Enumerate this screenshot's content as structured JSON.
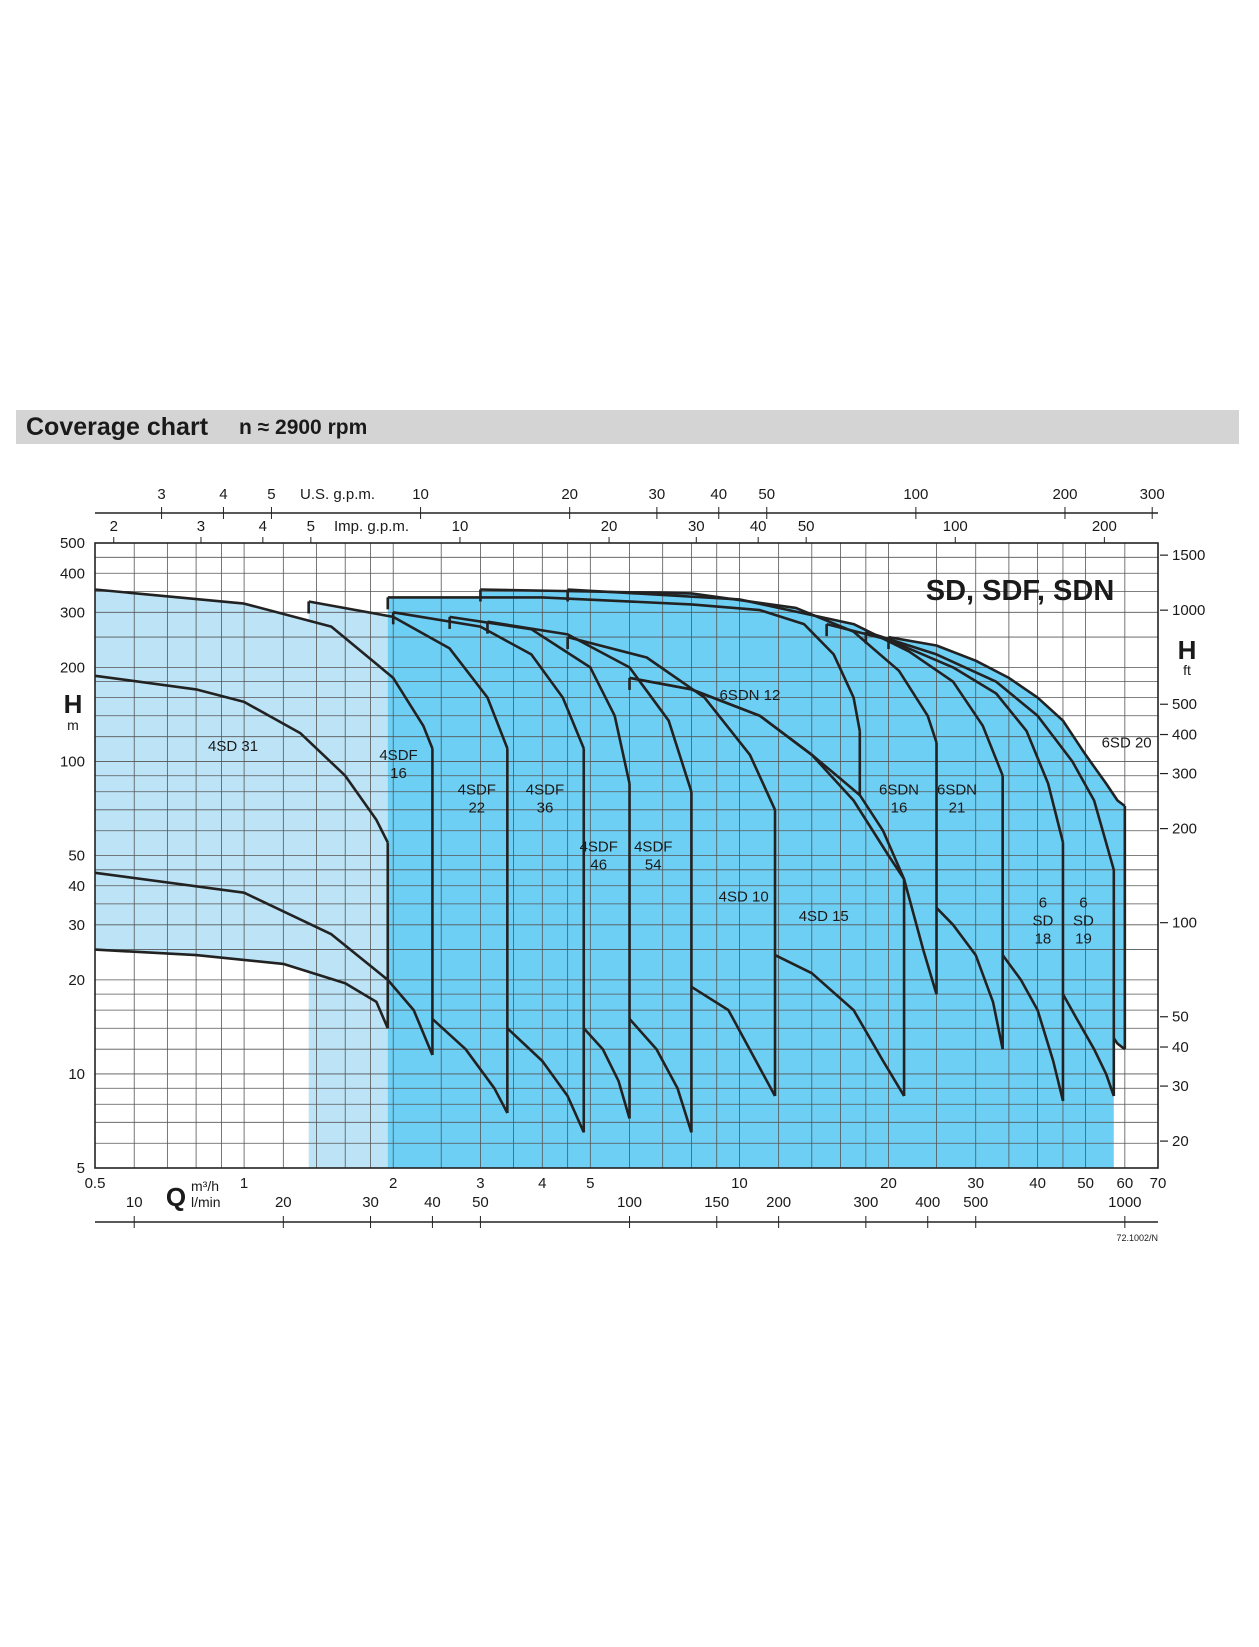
{
  "header": {
    "title": "Coverage chart",
    "subtitle": "n ≈ 2900 rpm"
  },
  "chart_data": {
    "type": "area",
    "title": "SD, SDF, SDN",
    "doc_code": "72.1002/N",
    "x_scale": "log",
    "y_scale": "log",
    "xlim": [
      0.5,
      70
    ],
    "ylim": [
      5,
      500
    ],
    "axes": {
      "bottom": {
        "symbol": "Q",
        "unit": "m³/h",
        "ticks": [
          0.5,
          1,
          2,
          3,
          4,
          5,
          10,
          20,
          30,
          40,
          50,
          60,
          70
        ],
        "labels": [
          "0.5",
          "1",
          "2",
          "3",
          "4",
          "5",
          "10",
          "20",
          "30",
          "40",
          "50",
          "60",
          "70"
        ]
      },
      "bottom_lmin": {
        "unit": "l/min",
        "ticks": [
          10,
          20,
          30,
          40,
          50,
          100,
          150,
          200,
          300,
          400,
          500,
          1000
        ],
        "labels": [
          "10",
          "20",
          "30",
          "40",
          "50",
          "100",
          "150",
          "200",
          "300",
          "400",
          "500",
          "1000"
        ]
      },
      "top_usgpm": {
        "unit": "U.S. g.p.m.",
        "ticks": [
          3,
          4,
          5,
          10,
          20,
          30,
          40,
          50,
          100,
          200,
          300
        ],
        "labels": [
          "3",
          "4",
          "5",
          "10",
          "20",
          "30",
          "40",
          "50",
          "100",
          "200",
          "300"
        ]
      },
      "top_impgpm": {
        "unit": "Imp. g.p.m.",
        "ticks": [
          2,
          3,
          4,
          5,
          10,
          20,
          30,
          40,
          50,
          100,
          200
        ],
        "labels": [
          "2",
          "3",
          "4",
          "5",
          "10",
          "20",
          "30",
          "40",
          "50",
          "100",
          "200"
        ]
      },
      "left": {
        "symbol": "H",
        "unit": "m",
        "ticks": [
          5,
          10,
          20,
          30,
          40,
          50,
          100,
          200,
          300,
          400,
          500
        ],
        "labels": [
          "5",
          "10",
          "20",
          "30",
          "40",
          "50",
          "100",
          "200",
          "300",
          "400",
          "500"
        ]
      },
      "right": {
        "symbol": "H",
        "unit": "ft",
        "ticks": [
          20,
          30,
          40,
          50,
          100,
          200,
          300,
          400,
          500,
          1000,
          1500
        ],
        "labels": [
          "20",
          "30",
          "40",
          "50",
          "100",
          "200",
          "300",
          "400",
          "500",
          "1000",
          "1500"
        ]
      }
    },
    "grid": true,
    "regions": [
      {
        "name": "4SD 31",
        "label": [
          "4SD 31"
        ],
        "color": "#bde4f6",
        "qmin": 0.5,
        "qmax": 1.95,
        "top": [
          [
            0.5,
            188
          ],
          [
            0.8,
            170
          ],
          [
            1.0,
            155
          ],
          [
            1.3,
            123
          ],
          [
            1.6,
            90
          ],
          [
            1.85,
            65
          ],
          [
            1.95,
            55
          ]
        ],
        "bottom": [
          [
            0.5,
            25
          ],
          [
            0.8,
            24
          ],
          [
            1.2,
            22.5
          ],
          [
            1.6,
            19.5
          ],
          [
            1.85,
            17
          ],
          [
            1.95,
            14
          ]
        ]
      },
      {
        "name": "4SDF 16",
        "label": [
          "4SDF",
          "16"
        ],
        "color": "#bde4f6",
        "qmin": 0.5,
        "qmax": 2.4,
        "top": [
          [
            0.5,
            355
          ],
          [
            1.0,
            320
          ],
          [
            1.5,
            270
          ],
          [
            2.0,
            185
          ],
          [
            2.3,
            130
          ],
          [
            2.4,
            110
          ]
        ],
        "bottom": [
          [
            0.5,
            44
          ],
          [
            1.0,
            38
          ],
          [
            1.5,
            28
          ],
          [
            1.95,
            20
          ],
          [
            2.2,
            16
          ],
          [
            2.4,
            11.5
          ]
        ]
      },
      {
        "name": "4SDF 22",
        "label": [
          "4SDF",
          "22"
        ],
        "color": "#bde4f6",
        "qmin": 1.35,
        "qmax": 3.4,
        "top": [
          [
            1.35,
            325
          ],
          [
            2.0,
            290
          ],
          [
            2.6,
            230
          ],
          [
            3.1,
            160
          ],
          [
            3.4,
            110
          ]
        ],
        "bottom": [
          [
            2.4,
            15
          ],
          [
            2.8,
            12
          ],
          [
            3.2,
            9
          ],
          [
            3.4,
            7.5
          ]
        ]
      },
      {
        "name": "4SDF 36",
        "label": [
          "4SDF",
          "36"
        ],
        "color": "#bde4f6",
        "qmin": 2.0,
        "qmax": 4.85,
        "top": [
          [
            2.0,
            300
          ],
          [
            3.0,
            270
          ],
          [
            3.8,
            220
          ],
          [
            4.4,
            160
          ],
          [
            4.85,
            110
          ]
        ],
        "bottom": [
          [
            3.4,
            14
          ],
          [
            4.0,
            11
          ],
          [
            4.5,
            8.5
          ],
          [
            4.85,
            6.5
          ]
        ]
      },
      {
        "name": "4SDF 46",
        "label": [
          "4SDF",
          "46"
        ],
        "color": "#bde4f6",
        "qmin": 2.6,
        "qmax": 6.0,
        "top": [
          [
            2.6,
            290
          ],
          [
            3.8,
            265
          ],
          [
            5.0,
            200
          ],
          [
            5.6,
            140
          ],
          [
            6.0,
            85
          ]
        ],
        "bottom": [
          [
            4.85,
            14
          ],
          [
            5.3,
            12
          ],
          [
            5.7,
            9.5
          ],
          [
            6.0,
            7.2
          ]
        ]
      },
      {
        "name": "4SDF 54",
        "label": [
          "4SDF",
          "54"
        ],
        "color": "#bde4f6",
        "qmin": 3.1,
        "qmax": 8.0,
        "top": [
          [
            3.1,
            280
          ],
          [
            4.5,
            255
          ],
          [
            6.0,
            200
          ],
          [
            7.2,
            135
          ],
          [
            8.0,
            80
          ]
        ],
        "bottom": [
          [
            6.0,
            15
          ],
          [
            6.8,
            12
          ],
          [
            7.5,
            9
          ],
          [
            8.0,
            6.5
          ]
        ]
      },
      {
        "name": "4SD 10",
        "label": [
          "4SD 10"
        ],
        "color": "#bde4f6",
        "qmin": 4.5,
        "qmax": 11.8,
        "top": [
          [
            4.5,
            250
          ],
          [
            6.5,
            215
          ],
          [
            8.5,
            160
          ],
          [
            10.5,
            105
          ],
          [
            11.8,
            70
          ]
        ],
        "bottom": [
          [
            8.0,
            19
          ],
          [
            9.5,
            16
          ],
          [
            10.8,
            11
          ],
          [
            11.8,
            8.5
          ]
        ]
      },
      {
        "name": "4SD 15",
        "label": [
          "4SD 15"
        ],
        "color": "#bde4f6",
        "qmin": 6.0,
        "qmax": 21.5,
        "top": [
          [
            6.0,
            185
          ],
          [
            8.0,
            170
          ],
          [
            11.0,
            140
          ],
          [
            14.0,
            105
          ],
          [
            17.0,
            75
          ],
          [
            20.0,
            50
          ],
          [
            21.5,
            42
          ]
        ],
        "bottom": [
          [
            11.8,
            24
          ],
          [
            14.0,
            21
          ],
          [
            17.0,
            16
          ],
          [
            19.5,
            11
          ],
          [
            21.5,
            8.5
          ]
        ]
      },
      {
        "name": "6SDN 12",
        "label": [
          "6SDN 12"
        ],
        "color": "#6ecff5",
        "qmin": 1.95,
        "qmax": 17.5,
        "top": [
          [
            1.95,
            335
          ],
          [
            4.0,
            335
          ],
          [
            8.0,
            318
          ],
          [
            11.0,
            305
          ],
          [
            13.5,
            275
          ],
          [
            15.5,
            220
          ],
          [
            17.0,
            160
          ],
          [
            17.5,
            125
          ]
        ],
        "bottom": [
          [
            6.0,
            185
          ],
          [
            8.0,
            170
          ],
          [
            11.0,
            140
          ],
          [
            14.0,
            105
          ],
          [
            16.0,
            88
          ],
          [
            17.5,
            78
          ]
        ]
      },
      {
        "name": "6SDN 16",
        "label": [
          "6SDN",
          "16"
        ],
        "color": "#6ecff5",
        "qmin": 3.0,
        "qmax": 25.0,
        "top": [
          [
            3.0,
            355
          ],
          [
            8.0,
            345
          ],
          [
            13.0,
            310
          ],
          [
            17.0,
            260
          ],
          [
            21.0,
            195
          ],
          [
            24.0,
            140
          ],
          [
            25.0,
            115
          ]
        ],
        "bottom": [
          [
            17.5,
            78
          ],
          [
            19.5,
            60
          ],
          [
            21.5,
            42
          ],
          [
            23.5,
            25
          ],
          [
            25.0,
            18
          ]
        ]
      },
      {
        "name": "6SDN 21",
        "label": [
          "6SDN",
          "21"
        ],
        "color": "#6ecff5",
        "qmin": 4.5,
        "qmax": 34.0,
        "top": [
          [
            4.5,
            355
          ],
          [
            10.0,
            330
          ],
          [
            17.0,
            275
          ],
          [
            22.0,
            225
          ],
          [
            27.0,
            180
          ],
          [
            31.0,
            130
          ],
          [
            34.0,
            90
          ]
        ],
        "bottom": [
          [
            25.0,
            34
          ],
          [
            27.0,
            30
          ],
          [
            30.0,
            24
          ],
          [
            32.5,
            17
          ],
          [
            34.0,
            12
          ]
        ]
      },
      {
        "name": "6 SD 18",
        "label": [
          "6",
          "SD",
          "18"
        ],
        "color": "#6ecff5",
        "qmin": 15.0,
        "qmax": 45.0,
        "top": [
          [
            15.0,
            275
          ],
          [
            20.0,
            245
          ],
          [
            27.0,
            200
          ],
          [
            33.0,
            165
          ],
          [
            38.0,
            125
          ],
          [
            42.0,
            85
          ],
          [
            45.0,
            55
          ]
        ],
        "bottom": [
          [
            34.0,
            24
          ],
          [
            37.0,
            20
          ],
          [
            40.0,
            16
          ],
          [
            43.0,
            11
          ],
          [
            45.0,
            8.2
          ]
        ]
      },
      {
        "name": "6 SD 19",
        "label": [
          "6",
          "SD",
          "19"
        ],
        "color": "#6ecff5",
        "qmin": 18.0,
        "qmax": 57.0,
        "top": [
          [
            18.0,
            260
          ],
          [
            25.0,
            220
          ],
          [
            33.0,
            180
          ],
          [
            40.0,
            140
          ],
          [
            47.0,
            100
          ],
          [
            52.0,
            75
          ],
          [
            55.0,
            55
          ],
          [
            57.0,
            45
          ]
        ],
        "bottom": [
          [
            45.0,
            18
          ],
          [
            48.0,
            15
          ],
          [
            52.0,
            12
          ],
          [
            55.0,
            10
          ],
          [
            57.0,
            8.5
          ]
        ]
      },
      {
        "name": "6SD 20",
        "label": [
          "6SD 20"
        ],
        "color": "#6ecff5",
        "qmin": 20.0,
        "qmax": 60.0,
        "top": [
          [
            20.0,
            250
          ],
          [
            25.0,
            235
          ],
          [
            30.0,
            210
          ],
          [
            35.0,
            185
          ],
          [
            40.0,
            160
          ],
          [
            45.0,
            135
          ],
          [
            50.0,
            105
          ],
          [
            55.0,
            85
          ],
          [
            58.0,
            75
          ],
          [
            60.0,
            72
          ]
        ],
        "bottom": [
          [
            57.0,
            13
          ],
          [
            58.0,
            12.5
          ],
          [
            60.0,
            12
          ]
        ]
      }
    ],
    "label_positions_data": [
      [
        0.95,
        112
      ],
      [
        2.05,
        98
      ],
      [
        2.95,
        76
      ],
      [
        4.05,
        76
      ],
      [
        5.2,
        50
      ],
      [
        6.7,
        50
      ],
      [
        10.2,
        37
      ],
      [
        14.8,
        32
      ],
      [
        10.5,
        163
      ],
      [
        21.0,
        76
      ],
      [
        27.5,
        76
      ],
      [
        41.0,
        31
      ],
      [
        49.5,
        31
      ],
      [
        60.5,
        115
      ]
    ]
  }
}
